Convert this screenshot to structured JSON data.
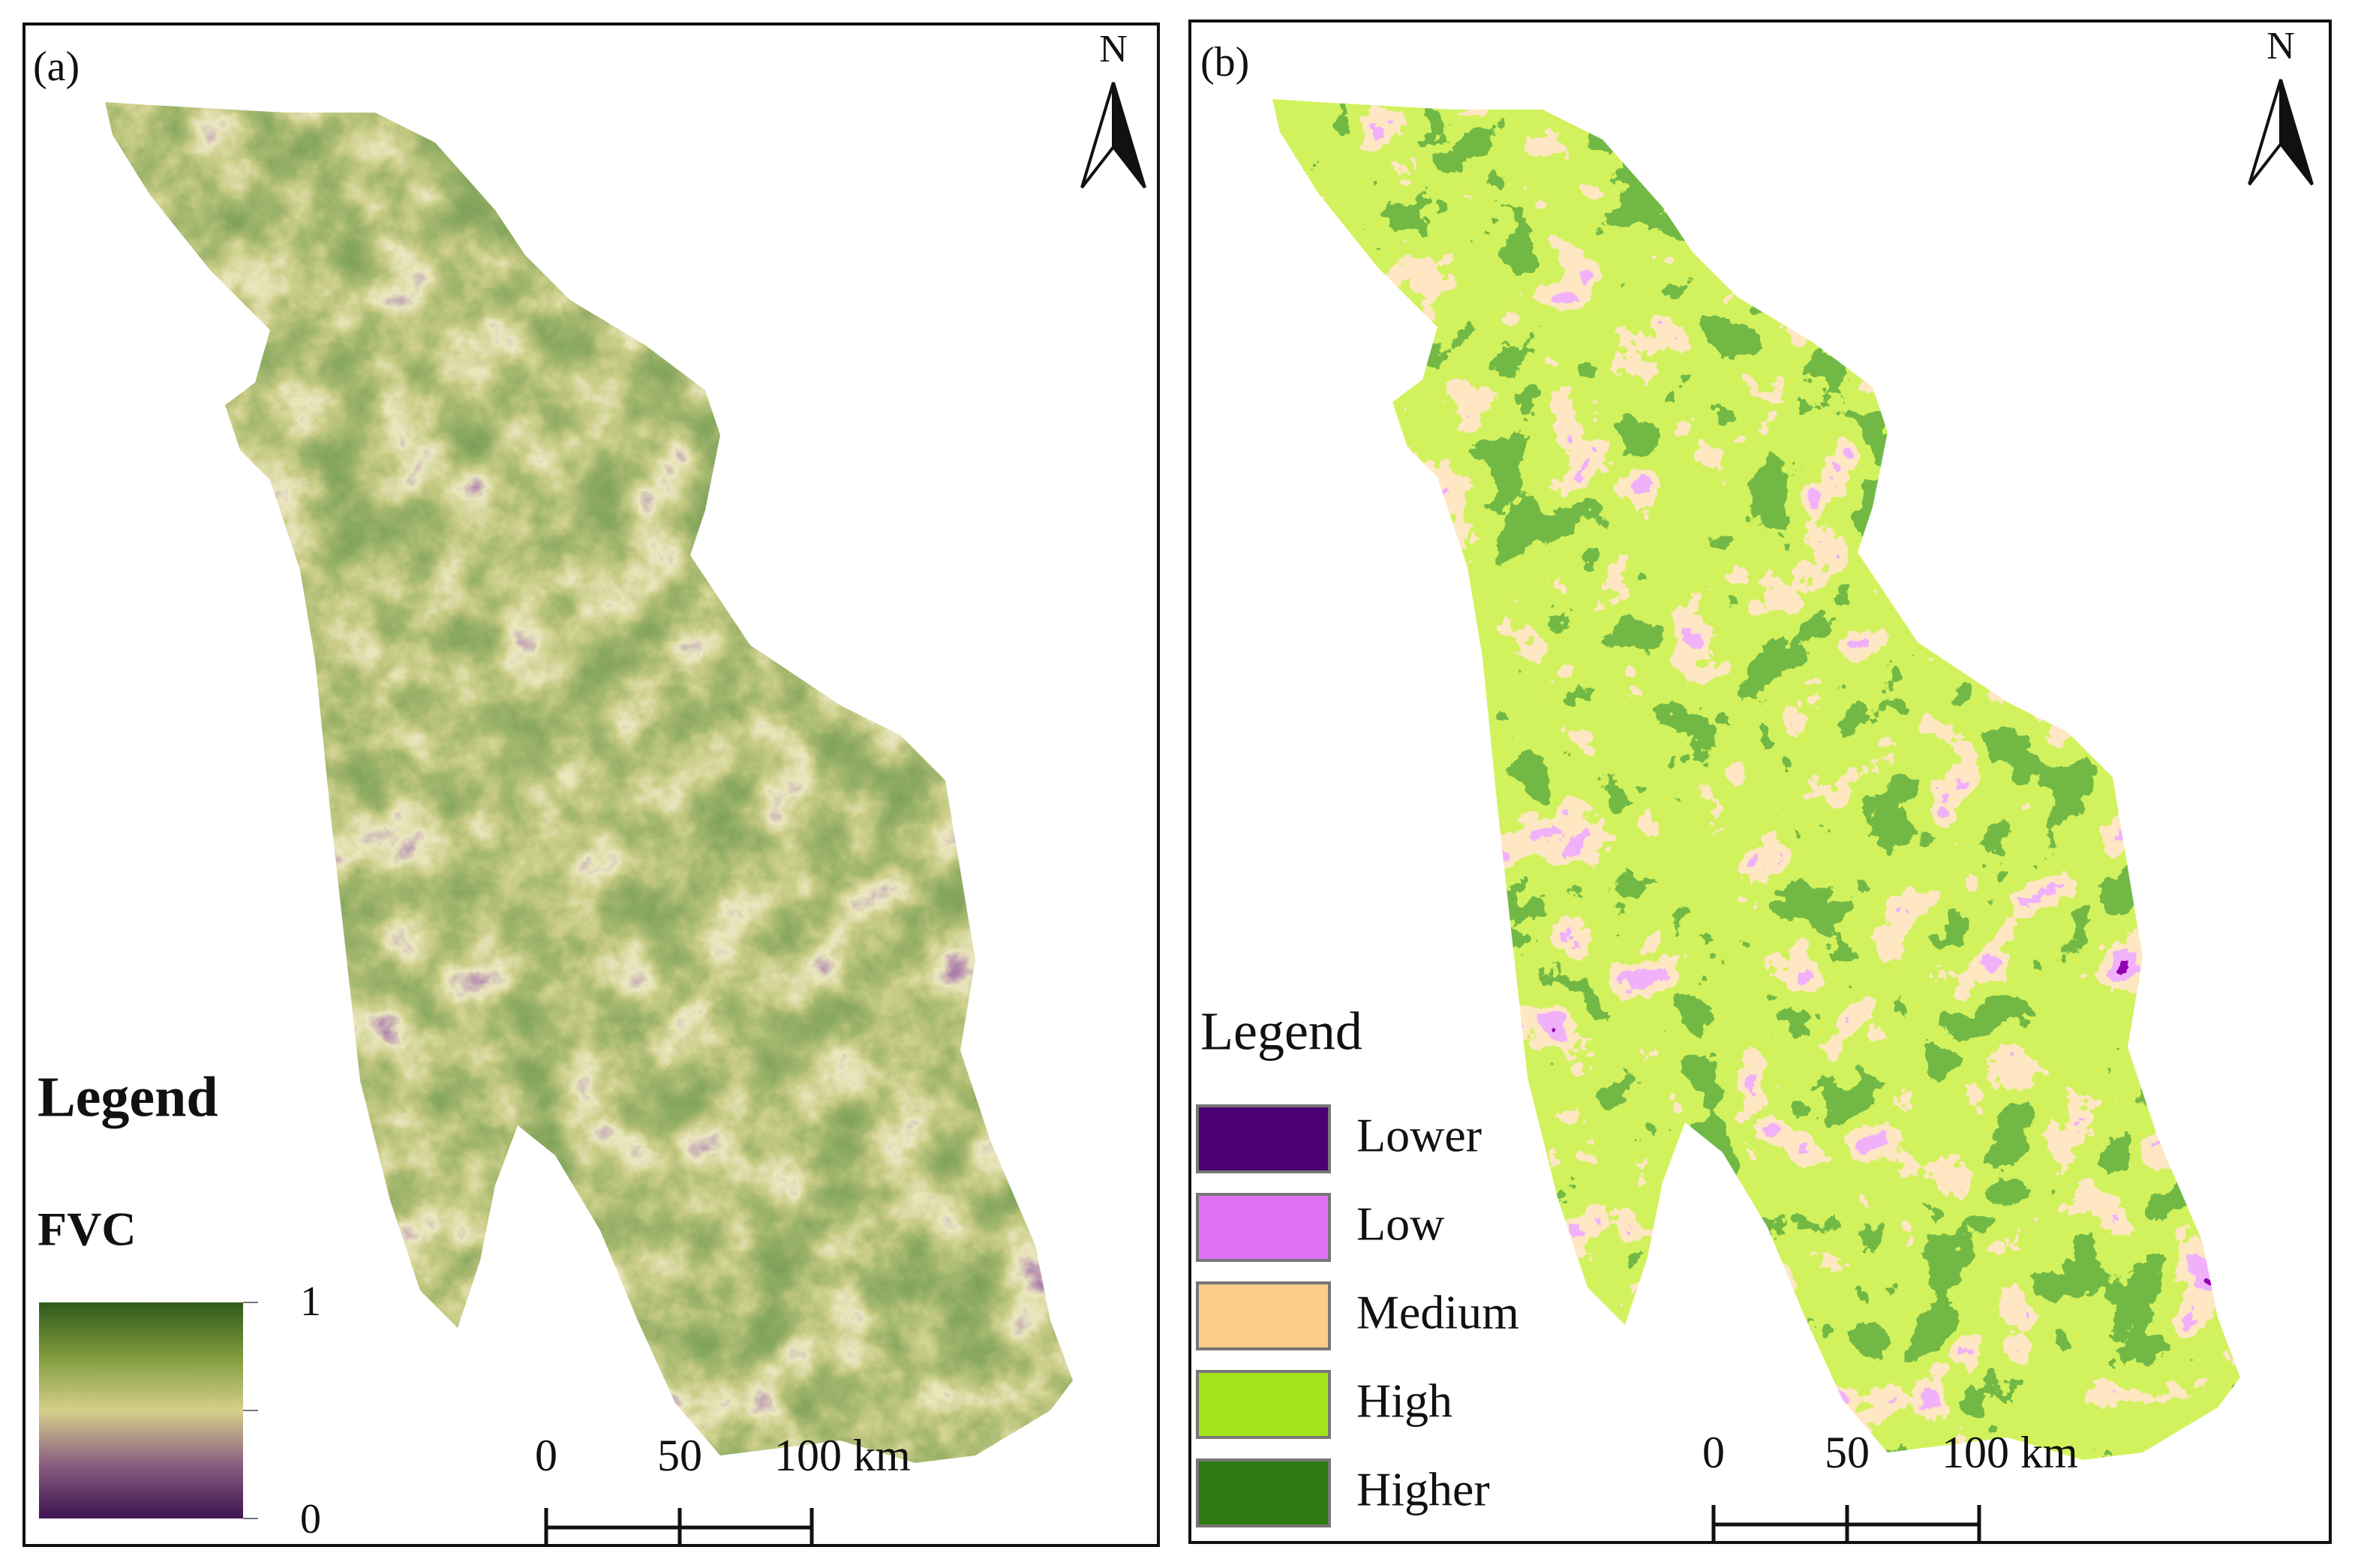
{
  "panels": [
    {
      "label": "(a)",
      "north": "N",
      "legend": {
        "title": "Legend",
        "subtitle": "FVC",
        "max_label": "1",
        "min_label": "0",
        "colors": [
          "#2f5a1c",
          "#7f9a3c",
          "#d6d08a",
          "#8a5e80",
          "#3e1452"
        ]
      },
      "scale": [
        "0",
        "50",
        "100 km"
      ]
    },
    {
      "label": "(b)",
      "north": "N",
      "legend": {
        "title": "Legend",
        "classes": [
          {
            "name": "Lower",
            "color": "#4a0070"
          },
          {
            "name": "Low",
            "color": "#e070f4"
          },
          {
            "name": "Medium",
            "color": "#fccd8a"
          },
          {
            "name": "High",
            "color": "#a2e41c"
          },
          {
            "name": "Higher",
            "color": "#2c7a10"
          }
        ]
      },
      "scale": [
        "0",
        "50",
        "100 km"
      ]
    }
  ]
}
